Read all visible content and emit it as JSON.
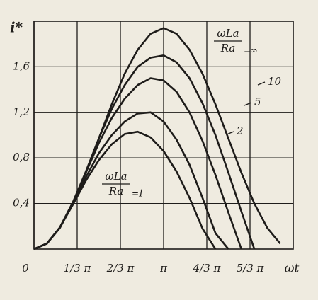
{
  "chart_data": {
    "type": "line",
    "y_label": "i*",
    "x_label": "ωt",
    "x": [
      0,
      0.1,
      0.2,
      0.3,
      0.4,
      0.5,
      0.6,
      0.7,
      0.8,
      0.9,
      1.0,
      1.1,
      1.2,
      1.3,
      1.4,
      1.5,
      1.6,
      1.7,
      1.8,
      1.9,
      2.0
    ],
    "xlim": [
      0,
      2
    ],
    "xticks": [
      0,
      {
        "value": 0.3333,
        "label": "1/3 π"
      },
      {
        "value": 0.6667,
        "label": "2/3 π"
      },
      {
        "value": 1,
        "label": "π"
      },
      {
        "value": 1.3333,
        "label": "4/3 π"
      },
      {
        "value": 1.6667,
        "label": "5/3 π"
      }
    ],
    "ylim": [
      0,
      2
    ],
    "yticks": [
      {
        "value": 0.4,
        "label": "0,4"
      },
      {
        "value": 0.8,
        "label": "0,8"
      },
      {
        "value": 1.2,
        "label": "1,2"
      },
      {
        "value": 1.6,
        "label": "1,6"
      }
    ],
    "grid": true,
    "parameter_numerator": "ωLa",
    "parameter_denominator": "Ra",
    "color": "#1e1c1a",
    "series": [
      {
        "name": "∞",
        "values": [
          0,
          0.048,
          0.185,
          0.4,
          0.67,
          0.97,
          1.27,
          1.54,
          1.75,
          1.89,
          1.94,
          1.89,
          1.75,
          1.54,
          1.27,
          0.97,
          0.67,
          0.4,
          0.185,
          0.048,
          null
        ]
      },
      {
        "name": "10",
        "values": [
          0,
          0.049,
          0.19,
          0.41,
          0.68,
          0.97,
          1.23,
          1.44,
          1.6,
          1.68,
          1.7,
          1.64,
          1.5,
          1.28,
          1.0,
          0.67,
          0.33,
          0,
          null,
          null,
          null
        ]
      },
      {
        "name": "5",
        "values": [
          0,
          0.049,
          0.19,
          0.41,
          0.67,
          0.93,
          1.15,
          1.32,
          1.44,
          1.5,
          1.48,
          1.38,
          1.2,
          0.95,
          0.65,
          0.32,
          0,
          null,
          null,
          null,
          null
        ]
      },
      {
        "name": "2",
        "values": [
          0,
          0.049,
          0.19,
          0.4,
          0.63,
          0.84,
          1.0,
          1.12,
          1.19,
          1.2,
          1.12,
          0.96,
          0.74,
          0.45,
          0.14,
          0,
          null,
          null,
          null,
          null,
          null
        ]
      },
      {
        "name": "1",
        "values": [
          0,
          0.049,
          0.19,
          0.39,
          0.6,
          0.78,
          0.92,
          1.01,
          1.03,
          0.98,
          0.86,
          0.68,
          0.45,
          0.18,
          0,
          null,
          null,
          null,
          null,
          null,
          null
        ]
      }
    ]
  }
}
